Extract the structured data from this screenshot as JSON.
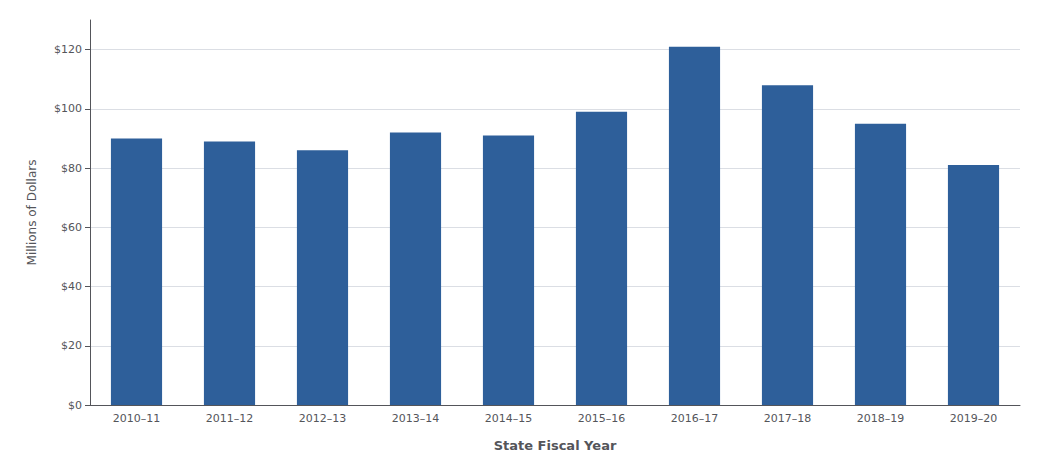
{
  "chart_data": {
    "type": "bar",
    "categories": [
      "2010–11",
      "2011–12",
      "2012–13",
      "2013–14",
      "2014–15",
      "2015–16",
      "2016–17",
      "2017–18",
      "2018–19",
      "2019–20"
    ],
    "values": [
      90,
      89,
      86,
      92,
      91,
      99,
      121,
      108,
      95,
      81
    ],
    "color": "#2E5F9A",
    "xlabel": "State Fiscal Year",
    "ylabel": "Millions of Dollars",
    "ylim": [
      0,
      130
    ],
    "yticks": [
      {
        "value": 0,
        "label": "$0"
      },
      {
        "value": 20,
        "label": "$20"
      },
      {
        "value": 40,
        "label": "$40"
      },
      {
        "value": 60,
        "label": "$60"
      },
      {
        "value": 80,
        "label": "$80"
      },
      {
        "value": 100,
        "label": "$100"
      },
      {
        "value": 120,
        "label": "$120"
      }
    ],
    "grid": true
  }
}
